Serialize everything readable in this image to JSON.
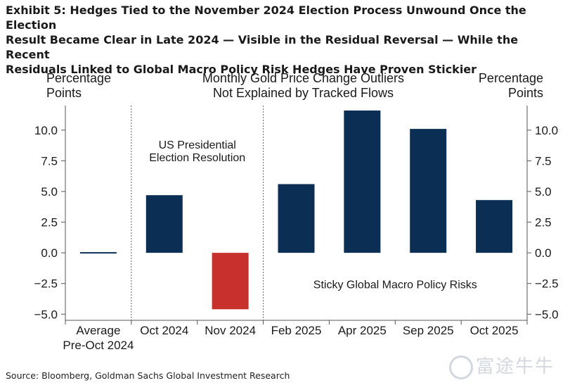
{
  "title_lines": [
    "Exhibit 5: Hedges Tied to the November 2024 Election Process Unwound Once the Election",
    "Result Became Clear in Late 2024 — Visible in the Residual Reversal — While the Recent",
    "Residuals Linked to Global Macro Policy Risk Hedges Have Proven Stickier"
  ],
  "source": "Source: Bloomberg, Goldman Sachs Global Investment Research",
  "watermark": "富途牛牛",
  "colors": {
    "positive": "#0b2e55",
    "negative": "#c8302e",
    "axis": "#555555"
  },
  "chart_data": {
    "type": "bar",
    "chart_title": [
      "Monthly Gold Price Change Outliers",
      "Not Explained by Tracked Flows"
    ],
    "ylabel_left": [
      "Percentage",
      "Points"
    ],
    "ylabel_right": [
      "Percentage",
      "Points"
    ],
    "categories": [
      [
        "Average",
        "Pre-Oct 2024"
      ],
      [
        "Oct 2024"
      ],
      [
        "Nov 2024"
      ],
      [
        "Feb 2025"
      ],
      [
        "Apr 2025"
      ],
      [
        "Sep 2025"
      ],
      [
        "Oct 2025"
      ]
    ],
    "values": [
      -0.1,
      4.7,
      -4.6,
      5.6,
      11.6,
      10.1,
      4.3
    ],
    "ylim": [
      -5.5,
      12.0
    ],
    "yticks": [
      -5.0,
      -2.5,
      0.0,
      2.5,
      5.0,
      7.5,
      10.0
    ],
    "ytick_labels": [
      "−5.0",
      "−2.5",
      "0.0",
      "2.5",
      "5.0",
      "7.5",
      "10.0"
    ],
    "annotations": [
      {
        "lines": [
          "US Presidential",
          "Election Resolution"
        ],
        "x_center": 1.5,
        "y": 8.5
      },
      {
        "lines": [
          "Sticky Global Macro Policy Risks"
        ],
        "x_center": 4.5,
        "y": -2.9
      }
    ],
    "dividers_after_index": [
      0,
      2
    ],
    "grid": false
  }
}
